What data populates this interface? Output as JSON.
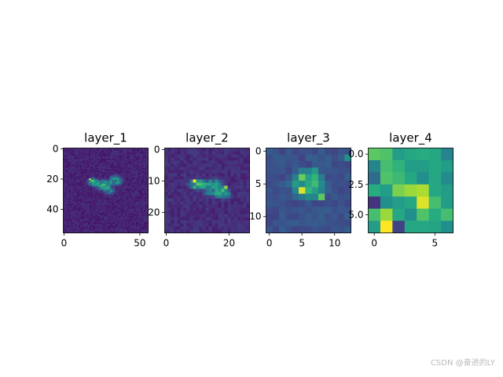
{
  "chart_data": [
    {
      "type": "heatmap",
      "title": "layer_1",
      "grid": false,
      "colormap": "viridis",
      "size": [
        56,
        56
      ],
      "xticks": [
        0,
        50
      ],
      "yticks": [
        0,
        20,
        40
      ],
      "blobs": [
        {
          "cx": 19,
          "cy": 22,
          "rx": 4,
          "ry": 3,
          "v": 0.5
        },
        {
          "cx": 26,
          "cy": 24,
          "rx": 6,
          "ry": 4,
          "v": 0.42
        },
        {
          "cx": 34,
          "cy": 21,
          "rx": 5,
          "ry": 4,
          "v": 0.38
        },
        {
          "cx": 30,
          "cy": 28,
          "rx": 4,
          "ry": 3,
          "v": 0.28
        }
      ],
      "hotspots": [
        {
          "x": 17,
          "y": 20,
          "v": 1.0
        },
        {
          "x": 18,
          "y": 21,
          "v": 0.8
        }
      ],
      "background": 0.05
    },
    {
      "type": "heatmap",
      "title": "layer_2",
      "grid": false,
      "colormap": "viridis",
      "size": [
        27,
        27
      ],
      "xticks": [
        0,
        20
      ],
      "yticks": [
        0,
        10,
        20
      ],
      "blobs": [
        {
          "cx": 10,
          "cy": 11,
          "rx": 3,
          "ry": 2,
          "v": 0.45
        },
        {
          "cx": 15,
          "cy": 12,
          "rx": 4,
          "ry": 3,
          "v": 0.4
        },
        {
          "cx": 18,
          "cy": 14,
          "rx": 3,
          "ry": 2,
          "v": 0.35
        }
      ],
      "hotspots": [
        {
          "x": 9,
          "y": 10,
          "v": 1.0
        },
        {
          "x": 19,
          "y": 12,
          "v": 0.85
        },
        {
          "x": 16,
          "y": 13,
          "v": 0.6
        }
      ],
      "background": 0.08
    },
    {
      "type": "heatmap",
      "title": "layer_3",
      "grid": false,
      "colormap": "viridis",
      "size": [
        13,
        13
      ],
      "xticks": [
        0,
        5,
        10
      ],
      "yticks": [
        0,
        5,
        10
      ],
      "blobs": [
        {
          "cx": 6,
          "cy": 5,
          "rx": 3,
          "ry": 2.5,
          "v": 0.4
        }
      ],
      "hotspots": [
        {
          "x": 5,
          "y": 6,
          "v": 0.95
        },
        {
          "x": 8,
          "y": 7,
          "v": 0.75
        },
        {
          "x": 7,
          "y": 3,
          "v": 0.55
        },
        {
          "x": 12,
          "y": 1,
          "v": 0.5
        }
      ],
      "background": 0.2
    },
    {
      "type": "heatmap",
      "title": "layer_4",
      "grid": false,
      "colormap": "viridis",
      "size": [
        7,
        7
      ],
      "xticks": [
        0,
        5
      ],
      "yticks": [
        0.0,
        2.5,
        5.0
      ],
      "matrix": [
        [
          0.75,
          0.72,
          0.55,
          0.6,
          0.62,
          0.6,
          0.45
        ],
        [
          0.45,
          0.7,
          0.65,
          0.55,
          0.55,
          0.6,
          0.55
        ],
        [
          0.35,
          0.72,
          0.68,
          0.6,
          0.5,
          0.6,
          0.48
        ],
        [
          0.62,
          0.55,
          0.8,
          0.85,
          0.88,
          0.6,
          0.55
        ],
        [
          0.15,
          0.5,
          0.55,
          0.6,
          0.95,
          0.7,
          0.55
        ],
        [
          0.7,
          0.85,
          0.6,
          0.5,
          0.72,
          0.62,
          0.7
        ],
        [
          0.55,
          1.0,
          0.2,
          0.6,
          0.6,
          0.58,
          0.5
        ]
      ]
    }
  ],
  "watermark": "CSDN @奋进的LY"
}
